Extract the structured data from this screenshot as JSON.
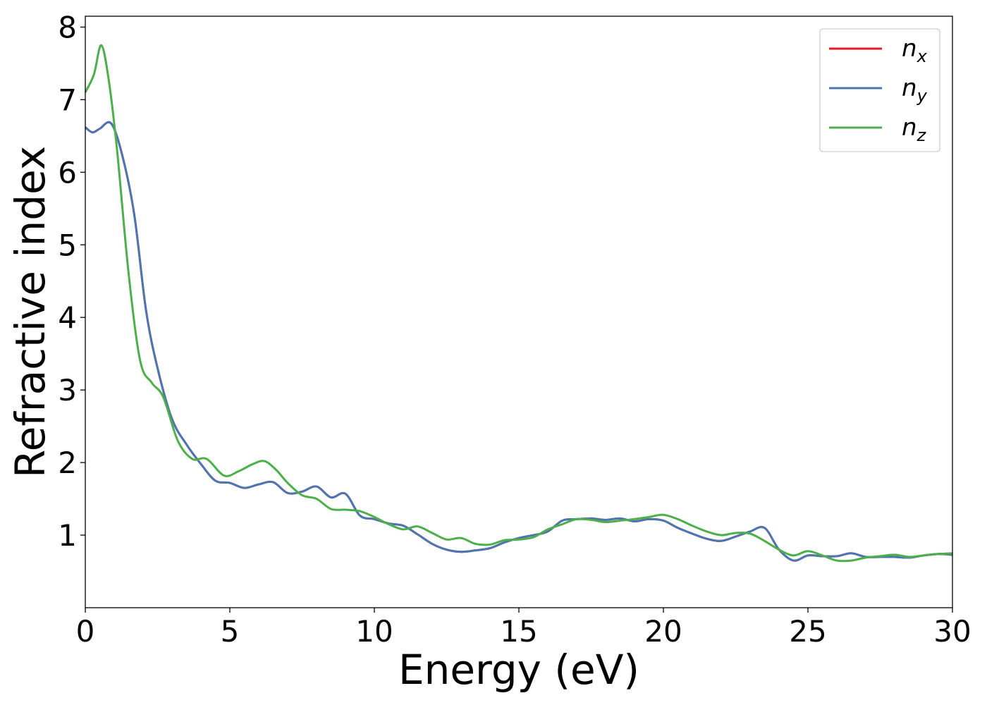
{
  "chart_data": {
    "type": "line",
    "xlabel": "Energy (eV)",
    "ylabel": "Refractive index",
    "xlim": [
      0,
      30
    ],
    "ylim": [
      0,
      8.15
    ],
    "xticks": [
      0,
      5,
      10,
      15,
      20,
      25,
      30
    ],
    "yticks": [
      1,
      2,
      3,
      4,
      5,
      6,
      7,
      8
    ],
    "grid": false,
    "legend_position": "top-right",
    "series": [
      {
        "name": "n_x",
        "label_main": "n",
        "label_sub": "x",
        "color": "#e41a1c",
        "x": [
          0,
          0.25,
          0.5,
          0.9,
          1.3,
          1.7,
          2.1,
          2.5,
          3.0,
          3.5,
          4.0,
          4.5,
          5.0,
          5.5,
          6.0,
          6.5,
          7.0,
          7.5,
          8.0,
          8.5,
          9.0,
          9.5,
          10.0,
          10.5,
          11.0,
          11.5,
          12.0,
          12.5,
          13.0,
          13.5,
          14.0,
          14.5,
          15.0,
          15.5,
          16.0,
          16.5,
          17.0,
          17.5,
          18.0,
          18.5,
          19.0,
          19.5,
          20.0,
          20.5,
          21.0,
          21.5,
          22.0,
          22.5,
          23.0,
          23.5,
          24.0,
          24.5,
          25.0,
          25.5,
          26.0,
          26.5,
          27.0,
          27.5,
          28.0,
          28.5,
          29.0,
          29.5,
          30.0
        ],
        "y": [
          6.62,
          6.55,
          6.6,
          6.67,
          6.2,
          5.4,
          4.1,
          3.3,
          2.6,
          2.25,
          1.98,
          1.75,
          1.72,
          1.65,
          1.7,
          1.73,
          1.58,
          1.6,
          1.67,
          1.52,
          1.57,
          1.27,
          1.22,
          1.16,
          1.13,
          1.01,
          0.88,
          0.8,
          0.77,
          0.79,
          0.82,
          0.9,
          0.96,
          1.0,
          1.05,
          1.2,
          1.22,
          1.23,
          1.21,
          1.23,
          1.19,
          1.22,
          1.2,
          1.1,
          1.02,
          0.95,
          0.92,
          0.98,
          1.05,
          1.1,
          0.8,
          0.65,
          0.72,
          0.71,
          0.71,
          0.75,
          0.7,
          0.7,
          0.7,
          0.69,
          0.72,
          0.74,
          0.73
        ]
      },
      {
        "name": "n_y",
        "label_main": "n",
        "label_sub": "y",
        "color": "#4a77b4",
        "x": [
          0,
          0.25,
          0.5,
          0.9,
          1.3,
          1.7,
          2.1,
          2.5,
          3.0,
          3.5,
          4.0,
          4.5,
          5.0,
          5.5,
          6.0,
          6.5,
          7.0,
          7.5,
          8.0,
          8.5,
          9.0,
          9.5,
          10.0,
          10.5,
          11.0,
          11.5,
          12.0,
          12.5,
          13.0,
          13.5,
          14.0,
          14.5,
          15.0,
          15.5,
          16.0,
          16.5,
          17.0,
          17.5,
          18.0,
          18.5,
          19.0,
          19.5,
          20.0,
          20.5,
          21.0,
          21.5,
          22.0,
          22.5,
          23.0,
          23.5,
          24.0,
          24.5,
          25.0,
          25.5,
          26.0,
          26.5,
          27.0,
          27.5,
          28.0,
          28.5,
          29.0,
          29.5,
          30.0
        ],
        "y": [
          6.62,
          6.55,
          6.6,
          6.67,
          6.2,
          5.4,
          4.1,
          3.3,
          2.6,
          2.25,
          1.98,
          1.75,
          1.72,
          1.65,
          1.7,
          1.73,
          1.58,
          1.6,
          1.67,
          1.52,
          1.57,
          1.27,
          1.22,
          1.16,
          1.13,
          1.01,
          0.88,
          0.8,
          0.77,
          0.79,
          0.82,
          0.9,
          0.96,
          1.0,
          1.05,
          1.2,
          1.22,
          1.23,
          1.21,
          1.23,
          1.19,
          1.22,
          1.2,
          1.1,
          1.02,
          0.95,
          0.92,
          0.98,
          1.05,
          1.1,
          0.8,
          0.65,
          0.72,
          0.71,
          0.71,
          0.75,
          0.7,
          0.7,
          0.7,
          0.69,
          0.72,
          0.74,
          0.73
        ]
      },
      {
        "name": "n_z",
        "label_main": "n",
        "label_sub": "z",
        "color": "#4daf4a",
        "x": [
          0,
          0.3,
          0.55,
          0.8,
          1.1,
          1.5,
          1.9,
          2.3,
          2.7,
          3.2,
          3.7,
          4.2,
          4.8,
          5.3,
          5.8,
          6.2,
          6.6,
          7.0,
          7.5,
          8.0,
          8.5,
          9.0,
          9.5,
          10.0,
          10.5,
          11.0,
          11.5,
          12.0,
          12.5,
          13.0,
          13.5,
          14.0,
          14.5,
          15.0,
          15.5,
          16.0,
          16.5,
          17.0,
          17.5,
          18.0,
          18.5,
          19.0,
          19.5,
          20.0,
          20.5,
          21.0,
          21.5,
          22.0,
          22.5,
          23.0,
          23.5,
          24.0,
          24.5,
          25.0,
          25.5,
          26.0,
          26.5,
          27.0,
          27.5,
          28.0,
          28.5,
          29.0,
          29.5,
          30.0
        ],
        "y": [
          7.1,
          7.35,
          7.75,
          7.3,
          6.3,
          4.6,
          3.4,
          3.1,
          2.9,
          2.3,
          2.05,
          2.05,
          1.82,
          1.88,
          1.98,
          2.02,
          1.9,
          1.72,
          1.55,
          1.5,
          1.36,
          1.35,
          1.33,
          1.25,
          1.15,
          1.08,
          1.12,
          1.03,
          0.94,
          0.96,
          0.88,
          0.87,
          0.93,
          0.94,
          0.97,
          1.08,
          1.15,
          1.22,
          1.21,
          1.18,
          1.2,
          1.22,
          1.25,
          1.28,
          1.22,
          1.13,
          1.05,
          1.0,
          1.03,
          1.02,
          0.92,
          0.8,
          0.72,
          0.78,
          0.72,
          0.65,
          0.65,
          0.69,
          0.71,
          0.73,
          0.7,
          0.72,
          0.74,
          0.75
        ]
      }
    ]
  }
}
